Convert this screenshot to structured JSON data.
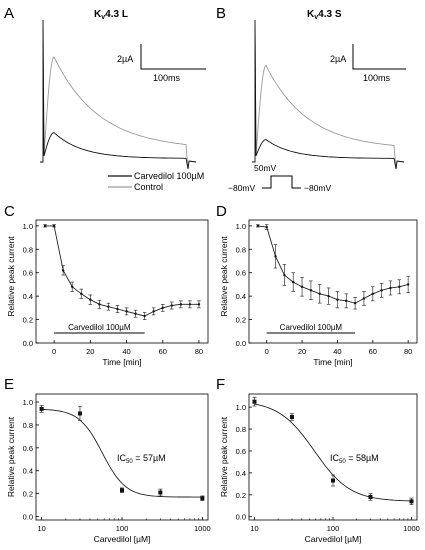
{
  "panels": {
    "A": {
      "letter": "A",
      "title": "K",
      "title_sub": "v",
      "title_rest": "4.3 L"
    },
    "B": {
      "letter": "B",
      "title": "K",
      "title_sub": "v",
      "title_rest": "4.3 S"
    },
    "C": {
      "letter": "C"
    },
    "D": {
      "letter": "D"
    },
    "E": {
      "letter": "E",
      "ic50_main": "IC",
      "ic50_sub": "50",
      "ic50_rest": " = 57µM"
    },
    "F": {
      "letter": "F",
      "ic50_main": "IC",
      "ic50_sub": "50",
      "ic50_rest": " = 58µM"
    }
  },
  "scale_bars": {
    "A": {
      "amp": "2µA",
      "time": "100ms"
    },
    "B": {
      "amp": "2µA",
      "time": "100ms"
    }
  },
  "legend": {
    "carvedilol": "Carvedilol 100µM",
    "control": "Control"
  },
  "protocol": {
    "step": "50mV",
    "hold_left": "−80mV",
    "hold_right": "−80mV"
  },
  "colors": {
    "carvedilol": "#111111",
    "control": "#9a9a9a",
    "axis": "#000000"
  },
  "chart_data": [
    {
      "panel": "A",
      "type": "line",
      "series": [
        {
          "name": "Control",
          "color": "#9a9a9a",
          "peak": 7.5
        },
        {
          "name": "Carvedilol 100µM",
          "color": "#111111",
          "peak": 2.1
        }
      ],
      "scale_bar": {
        "amplitude": "2µA",
        "time": "100ms"
      }
    },
    {
      "panel": "B",
      "type": "line",
      "series": [
        {
          "name": "Control",
          "color": "#9a9a9a",
          "peak": 6.9
        },
        {
          "name": "Carvedilol 100µM",
          "color": "#111111",
          "peak": 1.6
        }
      ],
      "scale_bar": {
        "amplitude": "2µA",
        "time": "100ms"
      }
    },
    {
      "panel": "C",
      "type": "line",
      "xlabel": "Time [min]",
      "ylabel": "Relative peak current",
      "xlim": [
        -10,
        85
      ],
      "ylim": [
        0,
        1.05
      ],
      "xticks": [
        0,
        20,
        40,
        60,
        80
      ],
      "yticks": [
        0.0,
        0.2,
        0.4,
        0.6,
        0.8,
        1.0
      ],
      "bar_label": "Carvedilol 100µM",
      "bar_range": [
        0,
        50
      ],
      "x": [
        -5,
        0,
        5,
        10,
        15,
        20,
        25,
        30,
        35,
        40,
        45,
        50,
        55,
        60,
        65,
        70,
        75,
        80
      ],
      "y": [
        1.0,
        1.0,
        0.62,
        0.48,
        0.42,
        0.37,
        0.33,
        0.31,
        0.29,
        0.27,
        0.25,
        0.23,
        0.27,
        0.3,
        0.32,
        0.33,
        0.33,
        0.33
      ],
      "err": [
        0.01,
        0.01,
        0.04,
        0.04,
        0.04,
        0.04,
        0.035,
        0.03,
        0.03,
        0.03,
        0.03,
        0.03,
        0.03,
        0.03,
        0.03,
        0.03,
        0.03,
        0.03
      ]
    },
    {
      "panel": "D",
      "type": "line",
      "xlabel": "Time [min]",
      "ylabel": "Relative peak current",
      "xlim": [
        -10,
        85
      ],
      "ylim": [
        0,
        1.05
      ],
      "xticks": [
        0,
        20,
        40,
        60,
        80
      ],
      "yticks": [
        0.0,
        0.2,
        0.4,
        0.6,
        0.8,
        1.0
      ],
      "bar_label": "Carvedilol 100µM",
      "bar_range": [
        0,
        50
      ],
      "x": [
        -5,
        0,
        5,
        10,
        15,
        20,
        25,
        30,
        35,
        40,
        45,
        50,
        55,
        60,
        65,
        70,
        75,
        80
      ],
      "y": [
        1.0,
        0.99,
        0.74,
        0.58,
        0.52,
        0.48,
        0.45,
        0.42,
        0.4,
        0.37,
        0.36,
        0.34,
        0.38,
        0.42,
        0.45,
        0.47,
        0.48,
        0.5
      ],
      "err": [
        0.01,
        0.02,
        0.1,
        0.09,
        0.08,
        0.08,
        0.08,
        0.08,
        0.07,
        0.07,
        0.06,
        0.05,
        0.06,
        0.06,
        0.06,
        0.06,
        0.06,
        0.07
      ]
    },
    {
      "panel": "E",
      "type": "scatter",
      "xlabel": "Carvedilol [µM]",
      "ylabel": "Relative peak current",
      "xscale": "log",
      "xlim": [
        10,
        1000
      ],
      "ylim": [
        0,
        1.0
      ],
      "xticks": [
        10,
        100,
        1000
      ],
      "yticks": [
        0.0,
        0.2,
        0.4,
        0.6,
        0.8,
        1.0
      ],
      "x": [
        10,
        30,
        100,
        300,
        1000
      ],
      "y": [
        0.94,
        0.9,
        0.23,
        0.21,
        0.16
      ],
      "err": [
        0.03,
        0.06,
        0.02,
        0.03,
        0.02
      ],
      "fit": {
        "top": 0.94,
        "bottom": 0.17,
        "ic50": 57,
        "hill": 3.0
      },
      "annotation": "IC50 = 57µM"
    },
    {
      "panel": "F",
      "type": "scatter",
      "xlabel": "Carvedilol [µM]",
      "ylabel": "Relative peak current",
      "xscale": "log",
      "xlim": [
        10,
        1000
      ],
      "ylim": [
        0,
        1.05
      ],
      "xticks": [
        10,
        100,
        1000
      ],
      "yticks": [
        0.0,
        0.2,
        0.4,
        0.6,
        0.8,
        1.0
      ],
      "x": [
        10,
        30,
        100,
        300,
        1000
      ],
      "y": [
        1.05,
        0.91,
        0.33,
        0.18,
        0.14
      ],
      "err": [
        0.04,
        0.03,
        0.05,
        0.03,
        0.03
      ],
      "fit": {
        "top": 1.06,
        "bottom": 0.14,
        "ic50": 58,
        "hill": 1.9
      },
      "annotation": "IC50 = 58µM"
    }
  ]
}
